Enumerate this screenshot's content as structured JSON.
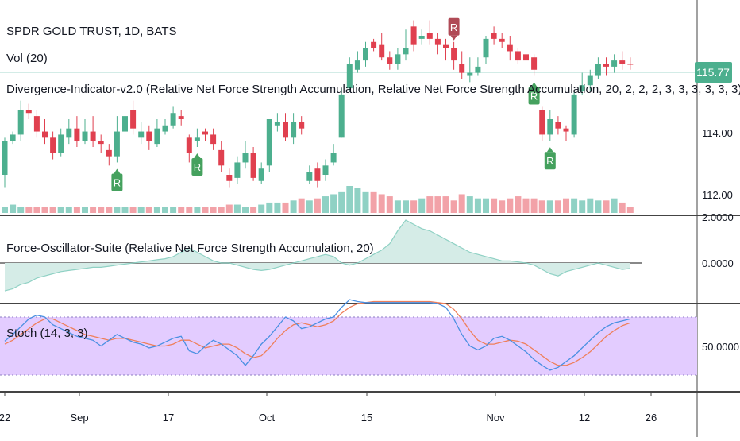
{
  "symbol_title": "SPDR GOLD TRUST, 1D, BATS",
  "volume_label": "Vol (20)",
  "divergence_label": "Divergence-Indicator-v2.0 (Relative Net Force Strength Accumulation, Relative Net Force Strength Accumulation, 20, 2, 2, 2, 3, 3, 3, 3, 3, 3)",
  "oscillator_label": "Force-Oscillator-Suite (Relative Net Force Strength Accumulation, 20)",
  "stoch_label": "Stoch (14, 3, 3)",
  "last_price": "115.77",
  "marker_text": "R",
  "colors": {
    "up": "#4caf8e",
    "down": "#e0404f",
    "vol_up": "#8fd1c4",
    "vol_down": "#f2a2a8",
    "stoch_k": "#4a90e2",
    "stoch_d": "#ef7f5a",
    "stoch_band": "#e3ccff",
    "osc_fill": "#d5ece7",
    "price_tag": "#4caf8e",
    "marker_green": "#45a15e",
    "marker_red": "#b04a56"
  },
  "chart_data": {
    "type": "candlestick",
    "time_labels": [
      "22",
      "Sep",
      "17",
      "Oct",
      "15",
      "Nov",
      "12",
      "26"
    ],
    "price_ticks": [
      "114.00",
      "112.00"
    ],
    "oscillator_ticks": [
      "2.0000",
      "0.0000"
    ],
    "stoch_ticks": [
      "50.0000"
    ],
    "price_range": [
      111.3,
      117.6
    ],
    "candles": [
      [
        112.2,
        113.3,
        111.8,
        113.4
      ],
      [
        113.3,
        113.5,
        113.2,
        113.6
      ],
      [
        113.5,
        114.3,
        113.3,
        114.6
      ],
      [
        114.3,
        114.2,
        114.0,
        114.5
      ],
      [
        114.1,
        113.6,
        113.4,
        114.3
      ],
      [
        113.6,
        113.4,
        113.2,
        114.0
      ],
      [
        113.4,
        112.9,
        112.7,
        113.6
      ],
      [
        112.9,
        113.5,
        112.8,
        113.7
      ],
      [
        113.4,
        113.7,
        113.2,
        114.0
      ],
      [
        113.7,
        113.3,
        113.1,
        114.1
      ],
      [
        113.3,
        113.6,
        113.2,
        114.0
      ],
      [
        113.6,
        113.3,
        113.1,
        114.1
      ],
      [
        113.3,
        113.2,
        112.9,
        113.5
      ],
      [
        113.0,
        112.8,
        112.5,
        113.2
      ],
      [
        112.8,
        113.6,
        112.6,
        114.1
      ],
      [
        113.6,
        114.1,
        113.4,
        114.4
      ],
      [
        114.3,
        113.7,
        113.5,
        114.6
      ],
      [
        113.4,
        113.6,
        113.2,
        113.9
      ],
      [
        113.6,
        113.3,
        113.0,
        113.8
      ],
      [
        113.2,
        113.7,
        113.1,
        114.0
      ],
      [
        113.6,
        113.8,
        113.5,
        114.0
      ],
      [
        113.8,
        114.2,
        113.7,
        114.4
      ],
      [
        114.1,
        114.0,
        113.8,
        114.3
      ],
      [
        113.4,
        112.9,
        112.6,
        113.5
      ],
      [
        113.3,
        113.4,
        113.1,
        113.7
      ],
      [
        113.6,
        113.5,
        113.3,
        113.7
      ],
      [
        113.5,
        113.2,
        113.0,
        113.7
      ],
      [
        113.0,
        112.5,
        112.3,
        113.3
      ],
      [
        112.2,
        112.0,
        111.8,
        112.4
      ],
      [
        112.1,
        112.6,
        111.9,
        112.8
      ],
      [
        112.6,
        112.9,
        112.4,
        113.3
      ],
      [
        112.9,
        112.1,
        112.0,
        113.1
      ],
      [
        112.0,
        112.4,
        111.9,
        112.6
      ],
      [
        112.5,
        114.0,
        112.3,
        114.0
      ],
      [
        113.8,
        113.9,
        113.6,
        114.2
      ],
      [
        113.9,
        113.4,
        113.3,
        114.2
      ],
      [
        113.4,
        113.9,
        113.2,
        114.2
      ],
      [
        113.9,
        113.7,
        113.5,
        114.1
      ],
      [
        112.0,
        112.3,
        111.9,
        112.5
      ],
      [
        112.4,
        112.0,
        111.8,
        112.6
      ],
      [
        112.2,
        112.5,
        112.0,
        112.7
      ],
      [
        112.6,
        112.9,
        112.5,
        113.2
      ],
      [
        113.4,
        114.8,
        113.4,
        115.0
      ],
      [
        115.0,
        115.8,
        114.9,
        116.0
      ],
      [
        115.6,
        115.9,
        115.5,
        116.2
      ],
      [
        115.9,
        116.3,
        115.7,
        116.5
      ],
      [
        116.5,
        116.3,
        116.2,
        116.6
      ],
      [
        116.4,
        116.0,
        115.9,
        116.8
      ],
      [
        116.0,
        115.8,
        115.6,
        116.2
      ],
      [
        115.8,
        116.1,
        115.6,
        116.3
      ],
      [
        116.1,
        116.3,
        115.9,
        116.9
      ],
      [
        117.0,
        116.4,
        116.2,
        117.2
      ],
      [
        116.6,
        116.7,
        116.4,
        116.9
      ],
      [
        116.8,
        116.6,
        116.4,
        117.2
      ],
      [
        116.6,
        116.4,
        116.1,
        116.8
      ],
      [
        116.4,
        116.3,
        115.9,
        116.6
      ],
      [
        116.3,
        115.9,
        115.6,
        116.5
      ],
      [
        115.8,
        115.5,
        115.3,
        116.2
      ],
      [
        115.4,
        115.5,
        115.2,
        116.0
      ],
      [
        115.5,
        115.7,
        115.4,
        116.0
      ],
      [
        116.0,
        116.6,
        115.8,
        116.7
      ],
      [
        116.8,
        116.6,
        116.4,
        117.0
      ],
      [
        116.6,
        116.5,
        116.3,
        116.8
      ],
      [
        116.4,
        116.2,
        115.9,
        116.7
      ],
      [
        116.2,
        115.9,
        115.8,
        116.3
      ],
      [
        116.1,
        115.9,
        115.8,
        116.5
      ],
      [
        116.0,
        115.6,
        115.4,
        116.1
      ],
      [
        114.3,
        113.5,
        113.3,
        114.4
      ],
      [
        113.5,
        114.0,
        113.3,
        114.3
      ],
      [
        113.9,
        113.7,
        113.5,
        114.1
      ],
      [
        113.7,
        113.6,
        113.3,
        113.8
      ],
      [
        113.5,
        114.8,
        113.4,
        114.9
      ],
      [
        114.9,
        115.1,
        114.8,
        115.5
      ],
      [
        115.1,
        115.4,
        114.9,
        115.6
      ],
      [
        115.4,
        115.8,
        115.3,
        116.0
      ],
      [
        115.8,
        115.7,
        115.4,
        116.0
      ],
      [
        115.7,
        115.9,
        115.5,
        116.1
      ],
      [
        115.9,
        115.8,
        115.6,
        116.2
      ],
      [
        115.8,
        115.77,
        115.6,
        116.0
      ]
    ],
    "volume": [
      3,
      4,
      3,
      3,
      3,
      3,
      3,
      3,
      3,
      3,
      3,
      3,
      3,
      3,
      3,
      3,
      3,
      3,
      3,
      3,
      3,
      3,
      3,
      3,
      3,
      3,
      3,
      3,
      4,
      4,
      3,
      3,
      4,
      5,
      5,
      5,
      6,
      7,
      6,
      7,
      8,
      9,
      10,
      13,
      12,
      10,
      10,
      9,
      8,
      6,
      6,
      6,
      7,
      8,
      8,
      8,
      6,
      9,
      8,
      7,
      7,
      7,
      6,
      7,
      8,
      7,
      7,
      6,
      6,
      6,
      7,
      7,
      6,
      7,
      6,
      6,
      7,
      5,
      3
    ],
    "oscillator": [
      -1.3,
      -1.2,
      -1.0,
      -0.9,
      -0.7,
      -0.6,
      -0.5,
      -0.4,
      -0.35,
      -0.3,
      -0.25,
      -0.2,
      -0.2,
      -0.15,
      -0.1,
      -0.05,
      0.0,
      0.05,
      0.1,
      0.15,
      0.2,
      0.3,
      0.5,
      0.7,
      0.5,
      0.3,
      0.1,
      0.0,
      0.0,
      -0.1,
      -0.2,
      -0.3,
      -0.35,
      -0.3,
      -0.2,
      -0.1,
      0.0,
      0.1,
      0.2,
      0.3,
      0.4,
      0.3,
      0.0,
      -0.1,
      0.0,
      0.2,
      0.4,
      0.6,
      0.9,
      1.5,
      2.0,
      1.8,
      1.6,
      1.5,
      1.3,
      1.1,
      0.9,
      0.7,
      0.5,
      0.4,
      0.3,
      0.2,
      0.1,
      0.1,
      0.05,
      0.0,
      -0.1,
      -0.3,
      -0.5,
      -0.6,
      -0.4,
      -0.3,
      -0.2,
      -0.1,
      0.0,
      -0.1,
      -0.2,
      -0.3,
      -0.25
    ],
    "stoch_k": [
      55,
      62,
      70,
      78,
      82,
      80,
      72,
      68,
      64,
      60,
      58,
      56,
      50,
      56,
      62,
      58,
      54,
      52,
      48,
      50,
      54,
      58,
      60,
      45,
      42,
      50,
      56,
      52,
      46,
      40,
      30,
      40,
      52,
      60,
      70,
      80,
      76,
      68,
      70,
      74,
      78,
      80,
      90,
      98,
      96,
      95,
      95,
      95,
      95,
      95,
      95,
      95,
      95,
      95,
      94,
      90,
      78,
      62,
      50,
      46,
      50,
      58,
      60,
      56,
      50,
      44,
      36,
      30,
      25,
      28,
      34,
      40,
      48,
      56,
      64,
      70,
      74,
      76,
      78
    ],
    "stoch_d": [
      52,
      56,
      62,
      68,
      74,
      78,
      78,
      74,
      70,
      66,
      62,
      60,
      58,
      56,
      58,
      58,
      56,
      54,
      52,
      50,
      50,
      52,
      56,
      56,
      52,
      48,
      50,
      52,
      52,
      48,
      42,
      38,
      40,
      48,
      58,
      66,
      72,
      74,
      72,
      70,
      72,
      76,
      84,
      90,
      94,
      95,
      96,
      96,
      96,
      96,
      96,
      96,
      96,
      96,
      95,
      94,
      88,
      78,
      66,
      56,
      52,
      52,
      54,
      56,
      55,
      52,
      46,
      40,
      34,
      30,
      30,
      33,
      38,
      44,
      52,
      60,
      66,
      71,
      74
    ],
    "markers": [
      {
        "index": 14,
        "type": "bull",
        "label": "R"
      },
      {
        "index": 24,
        "type": "bull",
        "label": "R"
      },
      {
        "index": 56,
        "type": "bear",
        "label": "R"
      },
      {
        "index": 66,
        "type": "bull",
        "label": "R"
      },
      {
        "index": 68,
        "type": "bull",
        "label": "R"
      }
    ]
  }
}
